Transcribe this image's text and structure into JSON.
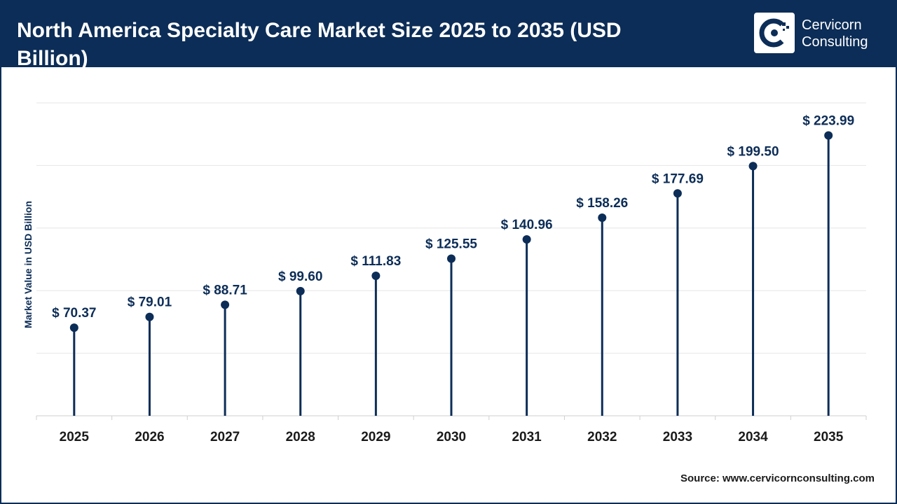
{
  "header": {
    "title": "North America Specialty Care Market Size 2025 to 2035 (USD Billion)",
    "brand": {
      "line1": "Cervicorn",
      "line2": "Consulting"
    }
  },
  "colors": {
    "header_bg": "#0c2d57",
    "stem": "#0c2d57",
    "grid": "#e6e6e6",
    "text": "#1a1a1a"
  },
  "icons": {
    "logo": "cervicorn-logo-icon"
  },
  "chart_data": {
    "type": "lollipop",
    "categories": [
      "2025",
      "2026",
      "2027",
      "2028",
      "2029",
      "2030",
      "2031",
      "2032",
      "2033",
      "2034",
      "2035"
    ],
    "values": [
      70.37,
      79.01,
      88.71,
      99.6,
      111.83,
      125.55,
      140.96,
      158.26,
      177.69,
      199.5,
      223.99
    ],
    "value_labels": [
      "$ 70.37",
      "$ 79.01",
      "$ 88.71",
      "$ 99.60",
      "$ 111.83",
      "$ 125.55",
      "$ 140.96",
      "$ 158.26",
      "$ 177.69",
      "$ 199.50",
      "$ 223.99"
    ],
    "ylabel": "Market Value in USD Billion",
    "ylim": [
      0,
      250
    ],
    "grid": true,
    "legend": "none"
  },
  "footer": {
    "source": "Source: www.cervicornconsulting.com"
  }
}
